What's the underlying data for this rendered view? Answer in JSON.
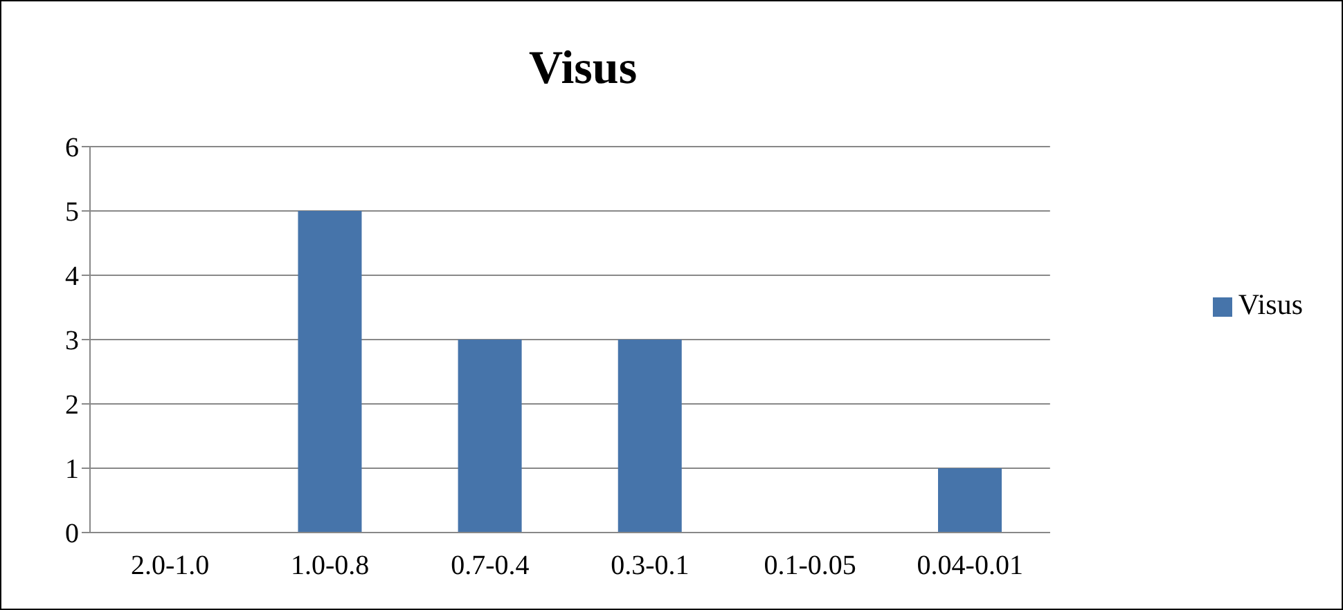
{
  "chart_data": {
    "type": "bar",
    "title": "Visus",
    "categories": [
      "2.0-1.0",
      "1.0-0.8",
      "0.7-0.4",
      "0.3-0.1",
      "0.1-0.05",
      "0.04-0.01"
    ],
    "series": [
      {
        "name": "Visus",
        "color": "#4674aa",
        "values": [
          0,
          5,
          3,
          3,
          0,
          1
        ]
      }
    ],
    "ylim": [
      0,
      6
    ],
    "yticks": [
      0,
      1,
      2,
      3,
      4,
      5,
      6
    ],
    "grid": "y",
    "legend": "right"
  }
}
